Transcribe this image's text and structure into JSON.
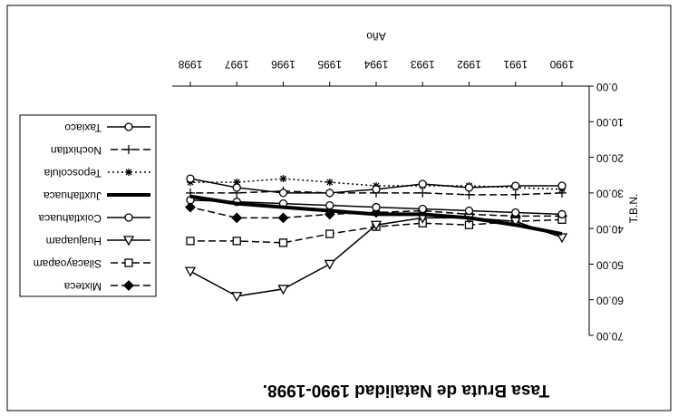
{
  "chart_data": {
    "type": "line",
    "title": "Tasa Bruta de Natalidad 1990-1998.",
    "x_label": "Año",
    "y_label": "T.B.N.",
    "categories": [
      "1990",
      "1991",
      "1992",
      "1993",
      "1994",
      "1995",
      "1996",
      "1997",
      "1998"
    ],
    "ylim": [
      0,
      70
    ],
    "yticks": [
      {
        "value": 0,
        "label": "0.00"
      },
      {
        "value": 10,
        "label": "10.00"
      },
      {
        "value": 20,
        "label": "20.00"
      },
      {
        "value": 30,
        "label": "30.00"
      },
      {
        "value": 40,
        "label": "40.00"
      },
      {
        "value": 50,
        "label": "50.00"
      },
      {
        "value": 60,
        "label": "60.00"
      },
      {
        "value": 70,
        "label": "70.00"
      }
    ],
    "series": [
      {
        "name": "Mixteca",
        "color": "#000000",
        "marker": "diamond",
        "dash": "dashed",
        "values": [
          36.5,
          36.5,
          36,
          35,
          35.5,
          36,
          37,
          37,
          34
        ]
      },
      {
        "name": "Silacayoapam",
        "color": "#000000",
        "marker": "square",
        "dash": "dashed",
        "values": [
          37.5,
          38,
          39,
          38.5,
          39.5,
          41.5,
          44,
          43.5,
          43.5
        ]
      },
      {
        "name": "Huajuapam",
        "color": "#000000",
        "marker": "triangle",
        "dash": "solid",
        "values": [
          42.5,
          38,
          37,
          37,
          39,
          50,
          57,
          59,
          52
        ]
      },
      {
        "name": "Coixtlahuaca",
        "color": "#000000",
        "marker": "circle",
        "dash": "solid",
        "values": [
          36,
          35.5,
          35,
          34.5,
          34,
          33.5,
          33,
          32.5,
          32
        ]
      },
      {
        "name": "Juxtlahuaca",
        "color": "#000000",
        "marker": "none",
        "dash": "thick",
        "values": [
          41.5,
          39,
          37,
          36,
          36,
          35,
          34,
          33,
          31
        ]
      },
      {
        "name": "Teposcolula",
        "color": "#000000",
        "marker": "asterisk",
        "dash": "dotted",
        "values": [
          29,
          28.5,
          28,
          28,
          28,
          27,
          26,
          27,
          27
        ]
      },
      {
        "name": "Nochixtlan",
        "color": "#000000",
        "marker": "plus",
        "dash": "dashed",
        "values": [
          30,
          30.5,
          30.5,
          30,
          30,
          30,
          29.5,
          30,
          30
        ]
      },
      {
        "name": "Taxiaco",
        "color": "#000000",
        "marker": "circle",
        "dash": "solid",
        "values": [
          28,
          28,
          28.5,
          27.5,
          29,
          30,
          30,
          28.5,
          26
        ]
      }
    ]
  }
}
